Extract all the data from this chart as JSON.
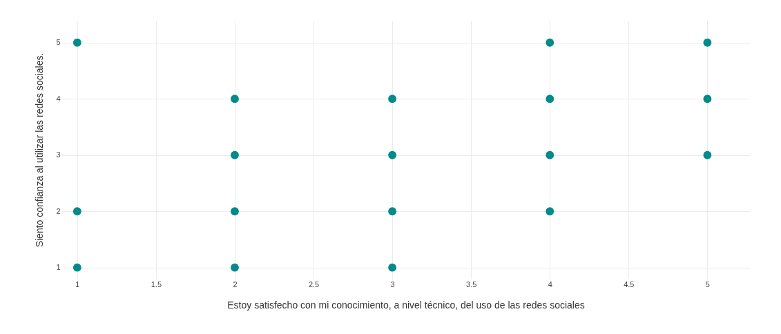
{
  "chart_data": {
    "type": "scatter",
    "xlabel": "Estoy satisfecho con mi conocimiento, a nivel técnico, del uso de las redes sociales",
    "ylabel": "Siento confianza al utilizar las redes sociales.",
    "x": [
      1,
      1,
      1,
      2,
      2,
      2,
      2,
      3,
      3,
      3,
      3,
      4,
      4,
      4,
      4,
      5,
      5,
      5
    ],
    "values": [
      5,
      2,
      1,
      4,
      3,
      2,
      1,
      4,
      3,
      2,
      1,
      5,
      4,
      3,
      2,
      5,
      4,
      3
    ],
    "color": "#008b8b",
    "xlim": [
      0.9,
      5.27
    ],
    "ylim": [
      0.8,
      5.39
    ],
    "xticks": [
      1,
      1.5,
      2,
      2.5,
      3,
      3.5,
      4,
      4.5,
      5
    ],
    "yticks": [
      1,
      2,
      3,
      4,
      5
    ],
    "grid": true,
    "marker": "circle"
  }
}
